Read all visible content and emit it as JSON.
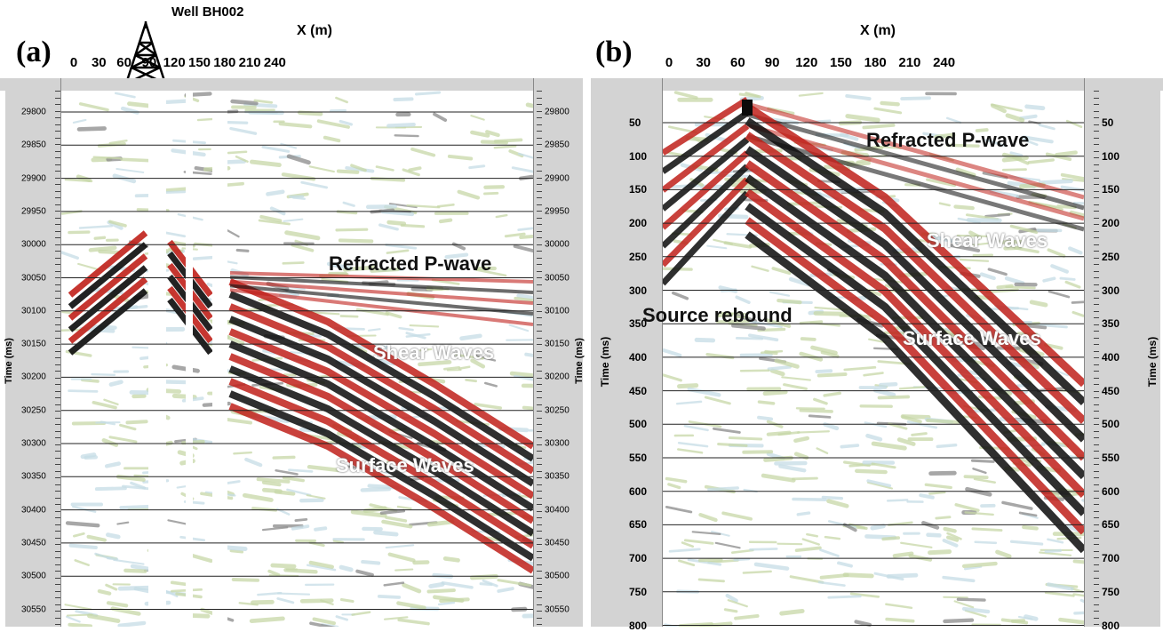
{
  "panel_a": {
    "label": "(a)",
    "x_title": "X (m)",
    "well_label": "Well BH002",
    "x_ticks": [
      "0",
      "30",
      "60",
      "90",
      "120",
      "150",
      "180",
      "210",
      "240"
    ],
    "y_title": "Time (ms)",
    "y_ticks": [
      "29800",
      "29850",
      "29900",
      "29950",
      "30000",
      "30050",
      "30100",
      "30150",
      "30200",
      "30250",
      "30300",
      "30350",
      "30400",
      "30450",
      "30500",
      "30550"
    ],
    "annotations": {
      "refracted": "Refracted P-wave",
      "shear": "Shear Waves",
      "surface": "Surface Waves"
    }
  },
  "panel_b": {
    "label": "(b)",
    "x_title": "X (m)",
    "x_ticks": [
      "0",
      "30",
      "60",
      "90",
      "120",
      "150",
      "180",
      "210",
      "240"
    ],
    "y_title": "Time (ms)",
    "y_ticks": [
      "50",
      "100",
      "150",
      "200",
      "250",
      "300",
      "350",
      "400",
      "450",
      "500",
      "550",
      "600",
      "650",
      "700",
      "750",
      "800"
    ],
    "annotations": {
      "refracted": "Refracted P-wave",
      "shear": "Shear Waves",
      "source": "Source rebound",
      "surface": "Surface Waves"
    }
  },
  "colors": {
    "red": "#c0201a",
    "black": "#0a0a0a",
    "green": "#c7d8a8",
    "blue": "#c6dde6",
    "gray": "#8a8a8a",
    "gutter": "#d3d3d3"
  }
}
